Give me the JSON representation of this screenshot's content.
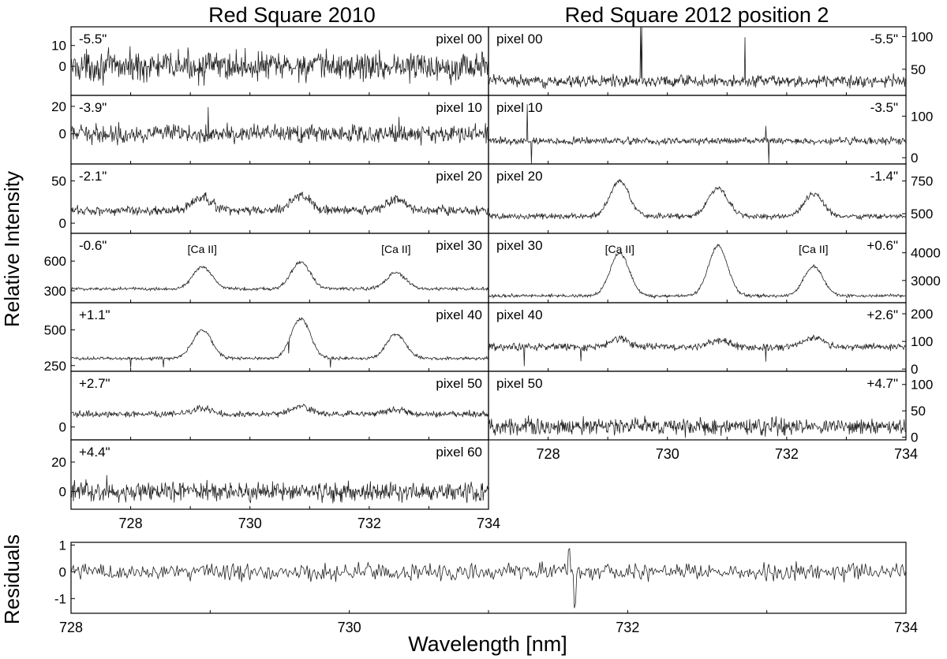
{
  "figure": {
    "ylabel": "Relative Intensity",
    "residuals_ylabel": "Residuals",
    "xlabel": "Wavelength [nm]"
  },
  "columns": [
    {
      "title": "Red Square 2010"
    },
    {
      "title": "Red Square 2012 position 2"
    }
  ],
  "chart_data": [
    {
      "type": "line",
      "column": 0,
      "pixel_label": "pixel 00",
      "offset_label": "-5.5\"",
      "xlim": [
        727.0,
        734.0
      ],
      "ylim": [
        -14,
        19
      ],
      "yticks": [
        0,
        10
      ],
      "ytick_side": "left",
      "noise": 5,
      "baseline": 0,
      "peaks": [],
      "spikes": [],
      "ca_labels": []
    },
    {
      "type": "line",
      "column": 0,
      "pixel_label": "pixel 10",
      "offset_label": "-3.9\"",
      "xlim": [
        727.0,
        734.0
      ],
      "ylim": [
        -22,
        28
      ],
      "yticks": [
        0,
        20
      ],
      "ytick_side": "left",
      "noise": 4.5,
      "baseline": 0,
      "peaks": [],
      "spikes": [
        [
          729.3,
          14
        ],
        [
          732.5,
          14
        ]
      ],
      "ca_labels": []
    },
    {
      "type": "line",
      "column": 0,
      "pixel_label": "pixel 20",
      "offset_label": "-2.1\"",
      "xlim": [
        727.0,
        734.0
      ],
      "ylim": [
        -12,
        70
      ],
      "yticks": [
        0,
        50
      ],
      "ytick_side": "left",
      "noise": 4,
      "baseline": 15,
      "peaks": [
        [
          729.2,
          15
        ],
        [
          730.85,
          18
        ],
        [
          732.45,
          13
        ]
      ],
      "spikes": [],
      "ca_labels": []
    },
    {
      "type": "line",
      "column": 0,
      "pixel_label": "pixel 30",
      "offset_label": "-0.6\"",
      "xlim": [
        727.0,
        734.0
      ],
      "ylim": [
        180,
        880
      ],
      "yticks": [
        300,
        600
      ],
      "ytick_side": "left",
      "noise": 12,
      "baseline": 320,
      "peaks": [
        [
          729.2,
          220
        ],
        [
          730.85,
          270
        ],
        [
          732.45,
          160
        ]
      ],
      "spikes": [],
      "ca_labels": [
        {
          "text": "[Ca II]",
          "x": 729.2
        },
        {
          "text": "[Ca II]",
          "x": 732.45
        }
      ]
    },
    {
      "type": "line",
      "column": 0,
      "pixel_label": "pixel 40",
      "offset_label": "+1.1\"",
      "xlim": [
        727.0,
        734.0
      ],
      "ylim": [
        210,
        690
      ],
      "yticks": [
        250,
        500
      ],
      "ytick_side": "left",
      "noise": 8,
      "baseline": 300,
      "peaks": [
        [
          729.2,
          200
        ],
        [
          730.85,
          280
        ],
        [
          732.45,
          170
        ]
      ],
      "spikes": [
        [
          728.0,
          -60
        ],
        [
          728.55,
          -60
        ],
        [
          730.65,
          -90
        ],
        [
          731.35,
          -70
        ]
      ],
      "ca_labels": []
    },
    {
      "type": "line",
      "column": 0,
      "pixel_label": "pixel 50",
      "offset_label": "+2.7\"",
      "xlim": [
        727.0,
        734.0
      ],
      "ylim": [
        -30,
        130
      ],
      "yticks": [
        0
      ],
      "ytick_side": "left",
      "noise": 5,
      "baseline": 30,
      "peaks": [
        [
          729.2,
          14
        ],
        [
          730.85,
          18
        ],
        [
          732.45,
          10
        ]
      ],
      "spikes": [],
      "ca_labels": []
    },
    {
      "type": "line",
      "column": 0,
      "pixel_label": "pixel 60",
      "offset_label": "+4.4\"",
      "xlim": [
        727.0,
        734.0
      ],
      "ylim": [
        -12,
        35
      ],
      "yticks": [
        0,
        20
      ],
      "ytick_side": "left",
      "noise": 4.5,
      "baseline": 0,
      "peaks": [],
      "spikes": [
        [
          727.6,
          12
        ],
        [
          732.4,
          9
        ]
      ],
      "ca_labels": []
    },
    {
      "type": "line",
      "column": 1,
      "pixel_label": "pixel 00",
      "offset_label": "-5.5\"",
      "xlim": [
        727.0,
        734.0
      ],
      "ylim": [
        10,
        115
      ],
      "yticks": [
        50,
        100
      ],
      "ytick_side": "right",
      "noise": 6,
      "baseline": 32,
      "peaks": [],
      "spikes": [
        [
          729.55,
          90
        ],
        [
          729.57,
          90
        ],
        [
          731.3,
          60
        ]
      ],
      "ca_labels": []
    },
    {
      "type": "line",
      "column": 1,
      "pixel_label": "pixel 10",
      "offset_label": "-3.5\"",
      "xlim": [
        727.0,
        734.0
      ],
      "ylim": [
        -15,
        150
      ],
      "yticks": [
        0,
        100
      ],
      "ytick_side": "right",
      "noise": 6,
      "baseline": 40,
      "peaks": [],
      "spikes": [
        [
          727.65,
          85
        ],
        [
          727.72,
          -55
        ],
        [
          731.65,
          30
        ],
        [
          731.7,
          -50
        ]
      ],
      "ca_labels": []
    },
    {
      "type": "line",
      "column": 1,
      "pixel_label": "pixel 20",
      "offset_label": "-1.4\"",
      "xlim": [
        727.0,
        734.0
      ],
      "ylim": [
        350,
        880
      ],
      "yticks": [
        500,
        750
      ],
      "ytick_side": "right",
      "noise": 15,
      "baseline": 480,
      "peaks": [
        [
          729.2,
          270
        ],
        [
          730.85,
          220
        ],
        [
          732.45,
          170
        ]
      ],
      "spikes": [],
      "ca_labels": []
    },
    {
      "type": "line",
      "column": 1,
      "pixel_label": "pixel 30",
      "offset_label": "+0.6\"",
      "xlim": [
        727.0,
        734.0
      ],
      "ylim": [
        2200,
        4700
      ],
      "yticks": [
        3000,
        4000
      ],
      "ytick_side": "right",
      "noise": 40,
      "baseline": 2450,
      "peaks": [
        [
          729.2,
          1550
        ],
        [
          730.85,
          1800
        ],
        [
          732.45,
          1050
        ]
      ],
      "spikes": [],
      "ca_labels": [
        {
          "text": "[Ca II]",
          "x": 729.2
        },
        {
          "text": "[Ca II]",
          "x": 732.45
        }
      ]
    },
    {
      "type": "line",
      "column": 1,
      "pixel_label": "pixel 40",
      "offset_label": "+2.6\"",
      "xlim": [
        727.0,
        734.0
      ],
      "ylim": [
        -8,
        240
      ],
      "yticks": [
        0,
        100,
        200
      ],
      "ytick_side": "right",
      "noise": 9,
      "baseline": 80,
      "peaks": [
        [
          729.2,
          30
        ],
        [
          730.85,
          25
        ],
        [
          732.45,
          35
        ]
      ],
      "spikes": [
        [
          727.6,
          -55
        ],
        [
          728.55,
          -50
        ],
        [
          731.65,
          -55
        ]
      ],
      "ca_labels": []
    },
    {
      "type": "line",
      "column": 1,
      "pixel_label": "pixel 50",
      "offset_label": "+4.7\"",
      "xlim": [
        727.0,
        734.0
      ],
      "ylim": [
        -5,
        125
      ],
      "yticks": [
        0,
        50,
        100
      ],
      "ytick_side": "right",
      "noise": 11,
      "baseline": 20,
      "peaks": [],
      "spikes": [],
      "ca_labels": []
    },
    {
      "type": "line",
      "column": 2,
      "pixel_label": "",
      "offset_label": "",
      "xlim": [
        728.0,
        734.0
      ],
      "ylim": [
        -1.55,
        1.1
      ],
      "yticks": [
        -1,
        0,
        1
      ],
      "ytick_side": "left",
      "noise": 0.22,
      "baseline": 0,
      "peaks": [],
      "spikes": [
        [
          731.58,
          0.95
        ],
        [
          731.62,
          -1.4
        ]
      ],
      "ca_labels": []
    }
  ],
  "x_axes": [
    {
      "under": "left-column",
      "ticks": [
        728,
        730,
        732,
        734
      ]
    },
    {
      "under": "right-column",
      "ticks": [
        728,
        730,
        732,
        734
      ]
    },
    {
      "under": "residuals",
      "ticks": [
        728,
        730,
        732,
        734
      ]
    }
  ]
}
